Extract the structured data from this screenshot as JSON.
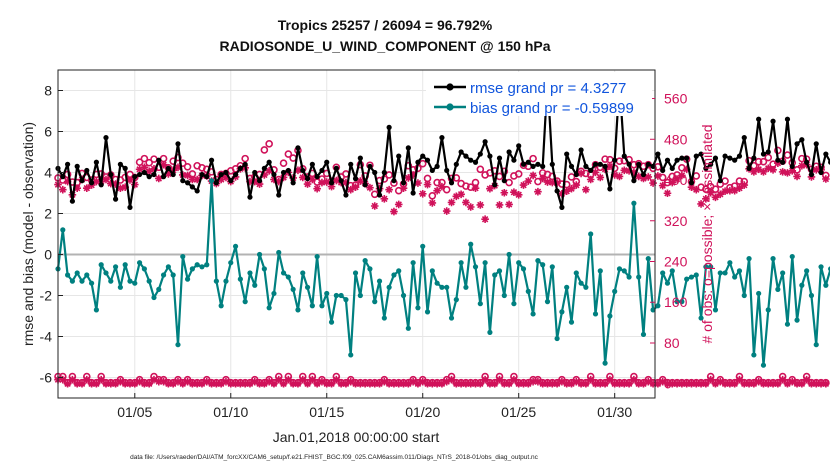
{
  "colors": {
    "rmse": "#000000",
    "bias": "#008080",
    "obs": "#d0125a",
    "legend_text": "#1155dd",
    "zero_line": "#b3b3b3",
    "grid": "#e6e6e6"
  },
  "chart_data": {
    "type": "line",
    "title": "Tropics 25257 / 26094 = 96.792%",
    "subtitle": "RADIOSONDE_U_WIND_COMPONENT @ 150 hPa",
    "xlabel": "Jan.01,2018 00:00:00 start",
    "ylabel_left": "rmse and bias (model - observation)",
    "ylabel_right": "# of obs: o=possible; ×=assimilated",
    "x_range": [
      1.0,
      32.1
    ],
    "ylim_left": [
      -7,
      9
    ],
    "ylim_right": [
      -28,
      616
    ],
    "x_ticks": [
      5,
      10,
      15,
      20,
      25,
      30
    ],
    "x_tick_labels": [
      "01/05",
      "01/10",
      "01/15",
      "01/20",
      "01/25",
      "01/30"
    ],
    "y_ticks_left": [
      -6,
      -4,
      -2,
      0,
      2,
      4,
      6,
      8
    ],
    "y_ticks_right": [
      0,
      80,
      160,
      240,
      320,
      400,
      480,
      560
    ],
    "legend": [
      {
        "label": "rmse grand pr = 4.3277",
        "series": "rmse"
      },
      {
        "label": "bias grand pr = -0.59899",
        "series": "bias"
      }
    ],
    "footnote": "data file: /Users/raeder/DAI/ATM_forcXX/CAM6_setup/f.e21.FHIST_BGC.f09_025.CAM6assim.011/Diags_NTrS_2018-01/obs_diag_output.nc",
    "start_day": 1.0,
    "step_days": 0.25,
    "series": [
      {
        "name": "rmse",
        "axis": "left",
        "values": [
          4.2,
          3.8,
          4.4,
          2.6,
          4.3,
          3.6,
          4.1,
          3.5,
          4.5,
          3.4,
          5.7,
          3.9,
          2.7,
          4.4,
          4.2,
          2.3,
          3.8,
          3.9,
          4.0,
          3.8,
          3.9,
          4.6,
          3.8,
          4.2,
          3.9,
          5.4,
          3.6,
          3.5,
          3.3,
          3.1,
          3.9,
          3.8,
          4.6,
          3.5,
          3.9,
          4.0,
          3.6,
          3.9,
          4.2,
          4.4,
          2.8,
          4.0,
          3.6,
          4.2,
          4.5,
          3.9,
          2.9,
          4.0,
          4.1,
          3.5,
          5.2,
          4.1,
          3.7,
          4.4,
          3.8,
          4.1,
          4.5,
          3.5,
          4.2,
          3.6,
          2.9,
          4.4,
          3.7,
          4.7,
          3.4,
          4.3,
          4.0,
          2.9,
          4.0,
          6.2,
          3.6,
          4.8,
          3.5,
          5.2,
          3.0,
          4.5,
          4.8,
          4.6,
          4.1,
          4.3,
          5.7,
          4.1,
          3.5,
          4.4,
          5.0,
          4.8,
          4.6,
          4.5,
          4.9,
          5.5,
          4.8,
          3.4,
          4.7,
          3.6,
          5.0,
          4.6,
          5.3,
          4.4,
          4.5,
          4.3,
          4.4,
          4.3,
          8.5,
          4.4,
          3.1,
          2.3,
          4.9,
          4.3,
          3.9,
          5.1,
          4.3,
          4.1,
          4.4,
          4.4,
          4.3,
          3.2,
          4.6,
          8.4,
          4.8,
          4.4,
          3.6,
          4.4,
          3.9,
          4.4,
          4.3,
          4.9,
          4.1,
          4.6,
          4.2,
          4.6,
          4.7,
          4.7,
          3.5,
          4.8,
          4.9,
          4.2,
          4.4,
          4.7,
          3.6,
          4.8,
          4.7,
          4.6,
          4.8,
          5.7,
          4.2,
          4.7,
          6.6,
          4.9,
          5.0,
          6.5,
          4.6,
          4.5,
          6.6,
          4.3,
          5.4,
          5.6,
          4.5,
          3.9,
          5.4,
          4.0,
          4.9,
          4.5,
          4.3,
          4.3,
          4.3
        ]
      },
      {
        "name": "bias",
        "axis": "left",
        "values": [
          -0.7,
          1.2,
          -1.0,
          -1.3,
          -0.9,
          -1.3,
          -1.0,
          -1.4,
          -2.7,
          -0.5,
          -0.9,
          -1.3,
          -0.6,
          -1.6,
          -0.5,
          -1.3,
          -1.4,
          -0.4,
          -0.7,
          -1.3,
          -2.1,
          -1.7,
          -1.0,
          -0.6,
          -1.0,
          -4.4,
          -0.1,
          -1.2,
          -0.7,
          -0.5,
          -0.6,
          -0.5,
          3.6,
          -1.3,
          -2.5,
          -1.3,
          -0.4,
          0.4,
          -1.2,
          -2.3,
          -0.9,
          -1.5,
          0.0,
          -0.7,
          -2.6,
          -1.9,
          0.1,
          -0.9,
          -1.1,
          -1.7,
          -2.7,
          -0.9,
          -1.6,
          -2.5,
          -0.1,
          -2.5,
          -1.9,
          -3.3,
          -2.0,
          -2.0,
          -2.2,
          -4.9,
          -0.9,
          -2.0,
          -0.3,
          -0.7,
          -2.3,
          -1.3,
          -3.1,
          -1.6,
          -1.0,
          -0.8,
          -2.0,
          -3.6,
          -0.4,
          -2.6,
          0.4,
          -2.8,
          -0.8,
          -1.4,
          -1.6,
          -1.6,
          -3.1,
          -2.2,
          -0.4,
          -1.6,
          0.5,
          -0.6,
          -2.4,
          -0.4,
          -3.8,
          -1.0,
          -0.8,
          -2.0,
          0.0,
          -2.4,
          -0.4,
          -0.7,
          -1.8,
          -2.9,
          -0.3,
          -0.5,
          -2.3,
          -0.6,
          -4.1,
          -2.8,
          -1.6,
          -3.3,
          -0.9,
          -1.4,
          -1.6,
          1.0,
          -2.9,
          -0.8,
          -5.3,
          -3.0,
          -1.8,
          -0.7,
          -0.8,
          -1.1,
          2.5,
          -1.1,
          -3.9,
          -0.2,
          -2.7,
          -2.5,
          -0.9,
          -1.4,
          -0.8,
          -2.3,
          -2.3,
          -1.2,
          -1.1,
          -1.0,
          -3.1,
          -0.6,
          -0.6,
          -2.7,
          -0.9,
          -0.9,
          -0.4,
          -1.1,
          -0.8,
          -2.0,
          -0.2,
          -4.9,
          -1.9,
          -5.4,
          -2.7,
          -0.2,
          -1.7,
          -0.9,
          -3.4,
          -0.1,
          -3.2,
          -1.5,
          -0.8,
          -2.0,
          -4.4,
          -0.6,
          -1.5,
          -0.7,
          -1.9,
          -2.0
        ]
      },
      {
        "name": "possible",
        "axis": "right",
        "values": [
          404,
          400,
          411,
          396,
          395,
          413,
          405,
          400,
          411,
          412,
          406,
          410,
          401,
          400,
          405,
          411,
          405,
          435,
          442,
          434,
          441,
          425,
          442,
          424,
          437,
          444,
          433,
          426,
          412,
          428,
          424,
          421,
          416,
          401,
          411,
          413,
          418,
          422,
          428,
          442,
          403,
          406,
          411,
          459,
          471,
          420,
          401,
          433,
          451,
          443,
          458,
          422,
          406,
          413,
          396,
          402,
          413,
          398,
          425,
          406,
          412,
          389,
          390,
          430,
          408,
          429,
          372,
          399,
          402,
          410,
          394,
          379,
          392,
          428,
          420,
          423,
          432,
          403,
          369,
          395,
          395,
          381,
          403,
          404,
          393,
          388,
          386,
          395,
          421,
          410,
          414,
          418,
          407,
          417,
          395,
          408,
          412,
          429,
          427,
          442,
          397,
          414,
          411,
          407,
          398,
          392,
          391,
          406,
          397,
          417,
          413,
          411,
          430,
          425,
          441,
          440,
          423,
          437,
          438,
          440,
          430,
          432,
          427,
          430,
          423,
          426,
          405,
          395,
          407,
          410,
          424,
          441,
          397,
          408,
          386,
          382,
          387,
          382,
          392,
          398,
          385,
          388,
          398,
          397,
          438,
          428,
          436,
          436,
          444,
          431,
          458,
          437,
          449,
          434,
          420,
          442,
          441,
          421,
          427,
          425,
          409
        ]
      },
      {
        "name": "assimilated",
        "axis": "right",
        "values": [
          391,
          381,
          397,
          371,
          384,
          401,
          384,
          390,
          397,
          397,
          401,
          393,
          392,
          384,
          386,
          400,
          391,
          421,
          425,
          417,
          422,
          403,
          430,
          412,
          419,
          425,
          410,
          409,
          401,
          401,
          409,
          408,
          398,
          393,
          401,
          405,
          397,
          406,
          422,
          424,
          397,
          397,
          392,
          410,
          418,
          401,
          397,
          405,
          415,
          404,
          419,
          405,
          392,
          401,
          383,
          395,
          396,
          387,
          399,
          395,
          395,
          381,
          386,
          398,
          393,
          385,
          349,
          383,
          363,
          381,
          338,
          352,
          384,
          404,
          410,
          394,
          373,
          391,
          355,
          379,
          387,
          339,
          356,
          368,
          372,
          356,
          347,
          384,
          351,
          323,
          383,
          389,
          351,
          375,
          352,
          376,
          371,
          390,
          398,
          409,
          377,
          403,
          396,
          395,
          394,
          373,
          378,
          383,
          390,
          413,
          381,
          401,
          415,
          405,
          421,
          427,
          410,
          407,
          419,
          418,
          415,
          407,
          403,
          406,
          394,
          408,
          389,
          374,
          395,
          402,
          409,
          421,
          386,
          381,
          353,
          363,
          375,
          366,
          372,
          378,
          379,
          379,
          384,
          390,
          422,
          416,
          421,
          416,
          423,
          420,
          433,
          416,
          414,
          418,
          407,
          428,
          430,
          406,
          420,
          420,
          402
        ]
      },
      {
        "name": "assimilated_low",
        "axis": "right",
        "values": [
          8,
          8,
          0,
          8,
          0,
          0,
          8,
          0,
          0,
          8,
          0,
          0,
          0,
          4,
          0,
          0,
          0,
          4,
          0,
          0,
          8,
          4,
          4,
          0,
          0,
          4,
          0,
          4,
          0,
          0,
          0,
          4,
          0,
          0,
          0,
          4,
          0,
          0,
          0,
          0,
          0,
          4,
          0,
          0,
          4,
          0,
          8,
          0,
          8,
          0,
          0,
          8,
          0,
          8,
          0,
          4,
          0,
          0,
          8,
          0,
          0,
          4,
          0,
          0,
          0,
          0,
          0,
          0,
          4,
          0,
          0,
          0,
          0,
          0,
          4,
          0,
          4,
          0,
          0,
          0,
          0,
          4,
          8,
          0,
          0,
          0,
          0,
          0,
          0,
          8,
          0,
          0,
          8,
          0,
          0,
          8,
          0,
          0,
          0,
          4,
          4,
          0,
          0,
          0,
          0,
          4,
          0,
          0,
          4,
          0,
          0,
          8,
          0,
          0,
          0,
          8,
          0,
          0,
          0,
          0,
          8,
          0,
          0,
          4,
          0,
          0,
          4,
          0,
          0,
          0,
          0,
          0,
          0,
          0,
          0,
          0,
          8,
          0,
          4,
          0,
          0,
          0,
          8,
          0,
          0,
          0,
          4,
          0,
          0,
          0,
          0,
          8,
          0,
          4,
          0,
          0,
          8,
          0,
          0,
          0,
          0
        ]
      },
      {
        "name": "possible_low",
        "axis": "right",
        "values": [
          14,
          14,
          2,
          14,
          2,
          2,
          14,
          2,
          2,
          14,
          2,
          2,
          2,
          8,
          2,
          2,
          2,
          8,
          2,
          2,
          14,
          8,
          8,
          2,
          2,
          8,
          2,
          8,
          2,
          2,
          2,
          8,
          2,
          2,
          2,
          8,
          2,
          2,
          2,
          2,
          2,
          8,
          2,
          2,
          8,
          2,
          14,
          2,
          14,
          2,
          2,
          14,
          2,
          14,
          2,
          8,
          2,
          2,
          14,
          2,
          2,
          8,
          2,
          2,
          2,
          2,
          2,
          2,
          8,
          2,
          2,
          2,
          2,
          2,
          8,
          2,
          8,
          2,
          2,
          2,
          2,
          8,
          14,
          2,
          2,
          2,
          2,
          2,
          2,
          14,
          2,
          2,
          14,
          2,
          2,
          14,
          2,
          2,
          2,
          8,
          8,
          2,
          2,
          2,
          2,
          8,
          2,
          2,
          8,
          2,
          2,
          14,
          2,
          2,
          2,
          14,
          2,
          2,
          2,
          2,
          14,
          2,
          2,
          8,
          2,
          2,
          8,
          2,
          2,
          2,
          2,
          2,
          2,
          2,
          2,
          2,
          14,
          2,
          8,
          2,
          2,
          2,
          14,
          2,
          2,
          2,
          8,
          2,
          2,
          2,
          2,
          14,
          2,
          8,
          2,
          2,
          14,
          2,
          2,
          2,
          2
        ]
      }
    ]
  }
}
